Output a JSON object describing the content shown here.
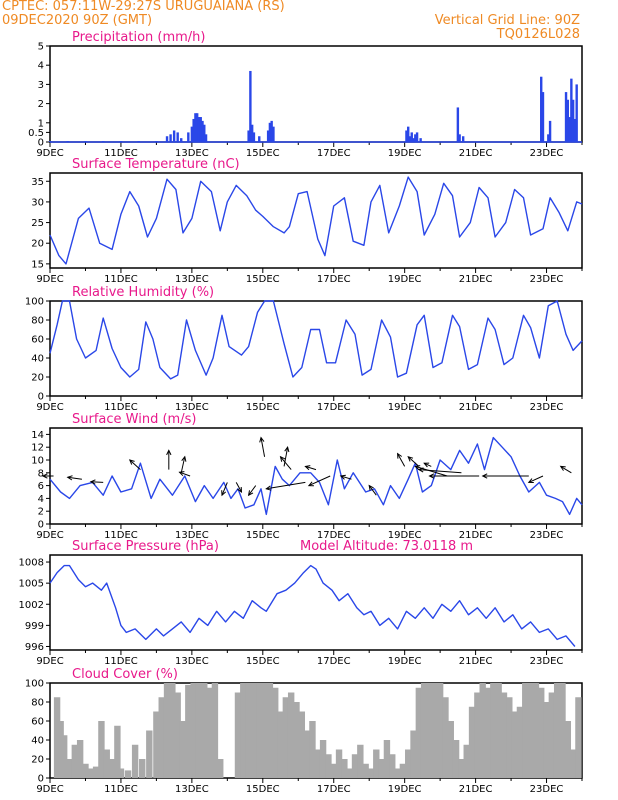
{
  "header": {
    "station": "CPTEC:  057:11W-29:27S  URUGUAIANA (RS)",
    "date": "09DEC2020 90Z (GMT)",
    "grid": "Vertical Grid Line: 90Z",
    "code": "TQ0126L028"
  },
  "colors": {
    "header": "#ef8a24",
    "title": "#e8198b",
    "series": "#2a47e8",
    "bar": "#2a47e8",
    "cloud": "#a9a9a9"
  },
  "x_axis": {
    "ticks": [
      "9DEC",
      "11DEC",
      "13DEC",
      "15DEC",
      "17DEC",
      "19DEC",
      "21DEC",
      "23DEC"
    ],
    "start_day": 9,
    "end_day": 24
  },
  "chart_data": [
    {
      "type": "bar",
      "title": "Precipitation (mm/h)",
      "ylim": [
        0,
        5
      ],
      "yticks": [
        0,
        0.5,
        1,
        2,
        3,
        4,
        5
      ],
      "x_unit": "day of December 2020",
      "x": [
        9.0,
        9.5,
        10.0,
        10.5,
        11.0,
        11.5,
        12.0,
        12.3,
        12.4,
        12.5,
        12.6,
        12.7,
        12.9,
        13.0,
        13.05,
        13.1,
        13.15,
        13.2,
        13.25,
        13.3,
        13.35,
        13.4,
        14.6,
        14.65,
        14.7,
        14.75,
        14.9,
        15.15,
        15.2,
        15.25,
        15.3,
        19.05,
        19.1,
        19.15,
        19.2,
        19.25,
        19.3,
        19.35,
        19.45,
        20.5,
        20.55,
        20.65,
        22.85,
        22.9,
        23.05,
        23.1,
        23.55,
        23.6,
        23.65,
        23.7,
        23.75,
        23.8,
        23.85
      ],
      "values": [
        0.05,
        0.05,
        0.05,
        0.05,
        0.05,
        0.05,
        0.05,
        0.3,
        0.4,
        0.6,
        0.5,
        0.2,
        0.5,
        0.8,
        1.2,
        1.5,
        1.5,
        1.3,
        1.3,
        1.1,
        0.9,
        0.4,
        0.6,
        3.7,
        0.9,
        0.5,
        0.3,
        0.6,
        1.0,
        1.1,
        0.8,
        0.6,
        0.8,
        0.3,
        0.5,
        0.2,
        0.4,
        0.5,
        0.2,
        1.8,
        0.4,
        0.3,
        3.4,
        2.6,
        0.4,
        1.1,
        2.6,
        2.2,
        1.3,
        3.3,
        2.2,
        1.2,
        3.0
      ]
    },
    {
      "type": "line",
      "title": "Surface Temperature (nC)",
      "ylim": [
        14,
        37
      ],
      "yticks": [
        15,
        20,
        25,
        30,
        35
      ],
      "x_unit": "day of December 2020",
      "x": [
        9.0,
        9.25,
        9.45,
        9.8,
        10.1,
        10.4,
        10.75,
        11.0,
        11.25,
        11.5,
        11.75,
        12.0,
        12.3,
        12.55,
        12.75,
        13.0,
        13.25,
        13.55,
        13.8,
        14.0,
        14.25,
        14.55,
        14.8,
        15.0,
        15.3,
        15.6,
        15.75,
        16.0,
        16.25,
        16.55,
        16.75,
        17.0,
        17.3,
        17.55,
        17.85,
        18.05,
        18.3,
        18.55,
        18.85,
        19.1,
        19.35,
        19.55,
        19.85,
        20.1,
        20.35,
        20.55,
        20.85,
        21.1,
        21.35,
        21.55,
        21.85,
        22.1,
        22.35,
        22.55,
        22.9,
        23.1,
        23.35,
        23.6,
        23.85,
        24.0
      ],
      "values": [
        22.0,
        17.0,
        15.0,
        26.0,
        28.5,
        20.0,
        18.5,
        27.0,
        32.5,
        29.0,
        21.5,
        26.0,
        35.5,
        33.0,
        22.5,
        26.0,
        35.0,
        32.5,
        23.0,
        30.0,
        34.0,
        31.5,
        28.0,
        26.5,
        24.0,
        22.5,
        24.0,
        32.0,
        32.5,
        21.0,
        17.0,
        29.0,
        31.0,
        20.5,
        19.5,
        30.0,
        34.0,
        22.5,
        29.0,
        36.0,
        32.5,
        22.0,
        27.0,
        34.5,
        31.5,
        21.5,
        25.0,
        33.5,
        31.0,
        21.5,
        25.0,
        33.0,
        31.0,
        22.0,
        23.5,
        31.0,
        27.5,
        23.0,
        30.0,
        29.5
      ]
    },
    {
      "type": "line",
      "title": "Relative Humidity (%)",
      "ylim": [
        0,
        100
      ],
      "yticks": [
        0,
        20,
        40,
        60,
        80,
        100
      ],
      "x_unit": "day of December 2020",
      "x": [
        9.0,
        9.2,
        9.35,
        9.55,
        9.75,
        10.0,
        10.3,
        10.5,
        10.75,
        11.0,
        11.25,
        11.5,
        11.7,
        11.9,
        12.1,
        12.4,
        12.6,
        12.85,
        13.1,
        13.4,
        13.6,
        13.85,
        14.05,
        14.4,
        14.6,
        14.85,
        15.05,
        15.3,
        15.6,
        15.85,
        16.1,
        16.35,
        16.6,
        16.8,
        17.05,
        17.35,
        17.6,
        17.8,
        18.05,
        18.35,
        18.6,
        18.8,
        19.05,
        19.35,
        19.55,
        19.8,
        20.05,
        20.35,
        20.55,
        20.8,
        21.05,
        21.35,
        21.55,
        21.8,
        22.05,
        22.35,
        22.55,
        22.8,
        23.05,
        23.3,
        23.55,
        23.75,
        24.0
      ],
      "values": [
        45.0,
        75.0,
        100.0,
        100.0,
        60.0,
        40.0,
        48.0,
        82.0,
        50.0,
        30.0,
        20.0,
        28.0,
        78.0,
        60.0,
        30.0,
        18.0,
        22.0,
        80.0,
        48.0,
        22.0,
        40.0,
        85.0,
        52.0,
        43.0,
        52.0,
        88.0,
        100.0,
        100.0,
        55.0,
        20.0,
        30.0,
        70.0,
        70.0,
        35.0,
        35.0,
        80.0,
        65.0,
        22.0,
        28.0,
        80.0,
        62.0,
        20.0,
        24.0,
        75.0,
        85.0,
        30.0,
        35.0,
        85.0,
        73.0,
        28.0,
        33.0,
        82.0,
        70.0,
        33.0,
        40.0,
        85.0,
        72.0,
        40.0,
        95.0,
        100.0,
        65.0,
        48.0,
        58.0
      ]
    },
    {
      "type": "line",
      "title": "Surface Wind (m/s)",
      "ylim": [
        0,
        15
      ],
      "yticks": [
        0,
        2,
        4,
        6,
        8,
        10,
        12,
        14
      ],
      "x_unit": "day of December 2020",
      "x": [
        9.0,
        9.3,
        9.55,
        9.85,
        10.2,
        10.5,
        10.75,
        11.0,
        11.3,
        11.55,
        11.85,
        12.1,
        12.45,
        12.8,
        13.1,
        13.35,
        13.6,
        13.9,
        14.1,
        14.3,
        14.5,
        14.75,
        14.95,
        15.1,
        15.35,
        15.55,
        15.75,
        16.05,
        16.35,
        16.6,
        16.85,
        17.1,
        17.3,
        17.55,
        17.9,
        18.15,
        18.4,
        18.6,
        18.85,
        19.1,
        19.3,
        19.5,
        19.75,
        20.0,
        20.3,
        20.55,
        20.8,
        21.05,
        21.25,
        21.5,
        21.75,
        22.0,
        22.25,
        22.5,
        22.8,
        23.0,
        23.25,
        23.45,
        23.65,
        23.85,
        24.0
      ],
      "values": [
        7.0,
        5.0,
        4.0,
        6.0,
        6.5,
        4.5,
        7.5,
        5.0,
        5.5,
        9.5,
        4.0,
        7.0,
        4.5,
        7.5,
        3.5,
        6.0,
        4.0,
        6.5,
        4.0,
        5.5,
        2.5,
        3.0,
        5.5,
        1.5,
        9.0,
        7.0,
        6.0,
        8.0,
        8.0,
        6.5,
        3.0,
        10.0,
        5.5,
        8.0,
        5.0,
        5.5,
        3.0,
        6.0,
        4.0,
        7.0,
        9.5,
        5.0,
        6.0,
        10.0,
        8.5,
        11.5,
        9.5,
        12.5,
        8.5,
        13.5,
        12.0,
        10.5,
        7.5,
        5.0,
        6.5,
        4.5,
        4.0,
        3.5,
        1.5,
        4.0,
        3.0
      ],
      "wind_vectors": [
        {
          "x": 9.1,
          "y": 7.5,
          "dx": -0.3,
          "dy": 0
        },
        {
          "x": 9.9,
          "y": 7.0,
          "dx": -0.4,
          "dy": 0.3
        },
        {
          "x": 10.5,
          "y": 6.5,
          "dx": -0.35,
          "dy": 0.1
        },
        {
          "x": 11.55,
          "y": 8.5,
          "dx": -0.3,
          "dy": 1.5
        },
        {
          "x": 12.35,
          "y": 8.5,
          "dx": 0,
          "dy": 3.0
        },
        {
          "x": 12.7,
          "y": 8.0,
          "dx": 0.1,
          "dy": 2.5
        },
        {
          "x": 12.95,
          "y": 7.5,
          "dx": -0.3,
          "dy": 0.6
        },
        {
          "x": 14.0,
          "y": 6.5,
          "dx": -0.15,
          "dy": -2.0
        },
        {
          "x": 14.25,
          "y": 6.5,
          "dx": 0.15,
          "dy": -1.5
        },
        {
          "x": 14.8,
          "y": 6.0,
          "dx": -0.2,
          "dy": -1.5
        },
        {
          "x": 15.05,
          "y": 10.5,
          "dx": -0.1,
          "dy": 3.0
        },
        {
          "x": 15.6,
          "y": 9.0,
          "dx": 0.1,
          "dy": 3.0
        },
        {
          "x": 15.8,
          "y": 8.5,
          "dx": -0.3,
          "dy": 2.0
        },
        {
          "x": 16.2,
          "y": 6.5,
          "dx": -1.1,
          "dy": -1.0
        },
        {
          "x": 16.5,
          "y": 8.5,
          "dx": -0.3,
          "dy": 0.5
        },
        {
          "x": 16.9,
          "y": 7.5,
          "dx": -0.6,
          "dy": -1.5
        },
        {
          "x": 17.5,
          "y": 7.0,
          "dx": -0.3,
          "dy": 0.5
        },
        {
          "x": 18.2,
          "y": 4.5,
          "dx": -0.2,
          "dy": 1.5
        },
        {
          "x": 19.0,
          "y": 9.0,
          "dx": -0.2,
          "dy": 2.0
        },
        {
          "x": 19.4,
          "y": 9.0,
          "dx": -0.3,
          "dy": 1.5
        },
        {
          "x": 19.75,
          "y": 9.0,
          "dx": -0.2,
          "dy": 0.5
        },
        {
          "x": 20.2,
          "y": 7.5,
          "dx": -0.9,
          "dy": 1.5
        },
        {
          "x": 20.6,
          "y": 8.0,
          "dx": -1.2,
          "dy": 0.5
        },
        {
          "x": 21.1,
          "y": 7.5,
          "dx": -1.4,
          "dy": 0
        },
        {
          "x": 22.5,
          "y": 7.5,
          "dx": -1.3,
          "dy": 0
        },
        {
          "x": 22.9,
          "y": 7.5,
          "dx": -0.4,
          "dy": -1.0
        },
        {
          "x": 23.7,
          "y": 8.0,
          "dx": -0.3,
          "dy": 1.0
        }
      ]
    },
    {
      "type": "line",
      "title": "Surface Pressure (hPa)",
      "subtitle": "Model Altitude: 73.0118 m",
      "ylim": [
        995.5,
        1009
      ],
      "yticks": [
        996,
        999,
        1002,
        1005,
        1008
      ],
      "x_unit": "day of December 2020",
      "x": [
        9.0,
        9.2,
        9.4,
        9.55,
        9.8,
        10.0,
        10.2,
        10.45,
        10.6,
        10.85,
        11.0,
        11.15,
        11.4,
        11.7,
        12.0,
        12.2,
        12.45,
        12.7,
        12.95,
        13.2,
        13.45,
        13.7,
        13.95,
        14.2,
        14.45,
        14.7,
        14.95,
        15.1,
        15.4,
        15.65,
        15.9,
        16.15,
        16.35,
        16.5,
        16.7,
        16.95,
        17.15,
        17.4,
        17.65,
        17.85,
        18.05,
        18.3,
        18.55,
        18.8,
        19.05,
        19.3,
        19.55,
        19.8,
        20.05,
        20.3,
        20.55,
        20.8,
        21.05,
        21.3,
        21.55,
        21.8,
        22.05,
        22.3,
        22.55,
        22.8,
        23.05,
        23.3,
        23.55,
        23.8
      ],
      "values": [
        1005.0,
        1006.5,
        1007.5,
        1007.5,
        1005.5,
        1004.5,
        1005.0,
        1004.0,
        1005.0,
        1001.5,
        999.0,
        998.0,
        998.5,
        997.0,
        998.5,
        997.5,
        998.5,
        999.5,
        998.0,
        1000.0,
        999.0,
        1001.0,
        999.5,
        1001.0,
        1000.0,
        1002.5,
        1001.5,
        1001.0,
        1003.5,
        1004.0,
        1005.0,
        1006.5,
        1007.5,
        1007.0,
        1005.0,
        1004.0,
        1002.5,
        1003.5,
        1001.5,
        1000.5,
        1001.0,
        999.0,
        1000.0,
        998.5,
        1001.0,
        1000.0,
        1001.5,
        1000.0,
        1002.0,
        1001.0,
        1002.5,
        1000.5,
        1001.5,
        1000.0,
        1001.5,
        999.5,
        1000.5,
        998.5,
        999.5,
        998.0,
        998.5,
        997.0,
        997.5,
        996.0
      ]
    },
    {
      "type": "bar",
      "title": "Cloud Cover (%)",
      "ylim": [
        0,
        100
      ],
      "yticks": [
        0,
        20,
        40,
        60,
        80,
        100
      ],
      "x_unit": "day of December 2020",
      "x": [
        9.2,
        9.3,
        9.4,
        9.55,
        9.7,
        9.85,
        10.0,
        10.15,
        10.3,
        10.45,
        10.6,
        10.75,
        10.9,
        11.0,
        11.2,
        11.4,
        11.6,
        11.8,
        12.0,
        12.15,
        12.3,
        12.45,
        12.6,
        12.75,
        12.9,
        13.05,
        13.2,
        13.35,
        13.5,
        13.65,
        13.8,
        14.3,
        14.45,
        14.6,
        14.75,
        14.9,
        15.05,
        15.2,
        15.35,
        15.5,
        15.65,
        15.8,
        15.95,
        16.1,
        16.25,
        16.4,
        16.55,
        16.7,
        16.85,
        17.0,
        17.15,
        17.3,
        17.45,
        17.6,
        17.75,
        17.9,
        18.05,
        18.2,
        18.35,
        18.5,
        18.65,
        18.8,
        18.95,
        19.1,
        19.25,
        19.4,
        19.55,
        19.7,
        19.85,
        20.0,
        20.15,
        20.3,
        20.45,
        20.6,
        20.75,
        20.9,
        21.05,
        21.2,
        21.35,
        21.5,
        21.65,
        21.8,
        21.95,
        22.1,
        22.25,
        22.4,
        22.55,
        22.7,
        22.85,
        23.0,
        23.15,
        23.3,
        23.45,
        23.6,
        23.75,
        23.9
      ],
      "values": [
        85,
        60,
        45,
        20,
        35,
        40,
        15,
        10,
        12,
        60,
        30,
        20,
        55,
        10,
        8,
        35,
        20,
        50,
        70,
        85,
        100,
        100,
        90,
        60,
        98,
        100,
        100,
        100,
        95,
        100,
        20,
        90,
        100,
        100,
        100,
        100,
        100,
        100,
        95,
        70,
        85,
        90,
        80,
        70,
        50,
        60,
        30,
        40,
        25,
        15,
        30,
        20,
        10,
        25,
        35,
        15,
        10,
        30,
        20,
        40,
        25,
        10,
        15,
        30,
        50,
        95,
        100,
        100,
        100,
        100,
        85,
        60,
        40,
        20,
        35,
        75,
        90,
        100,
        95,
        100,
        100,
        90,
        85,
        70,
        75,
        100,
        100,
        100,
        95,
        80,
        90,
        100,
        100,
        60,
        30,
        85
      ]
    }
  ]
}
